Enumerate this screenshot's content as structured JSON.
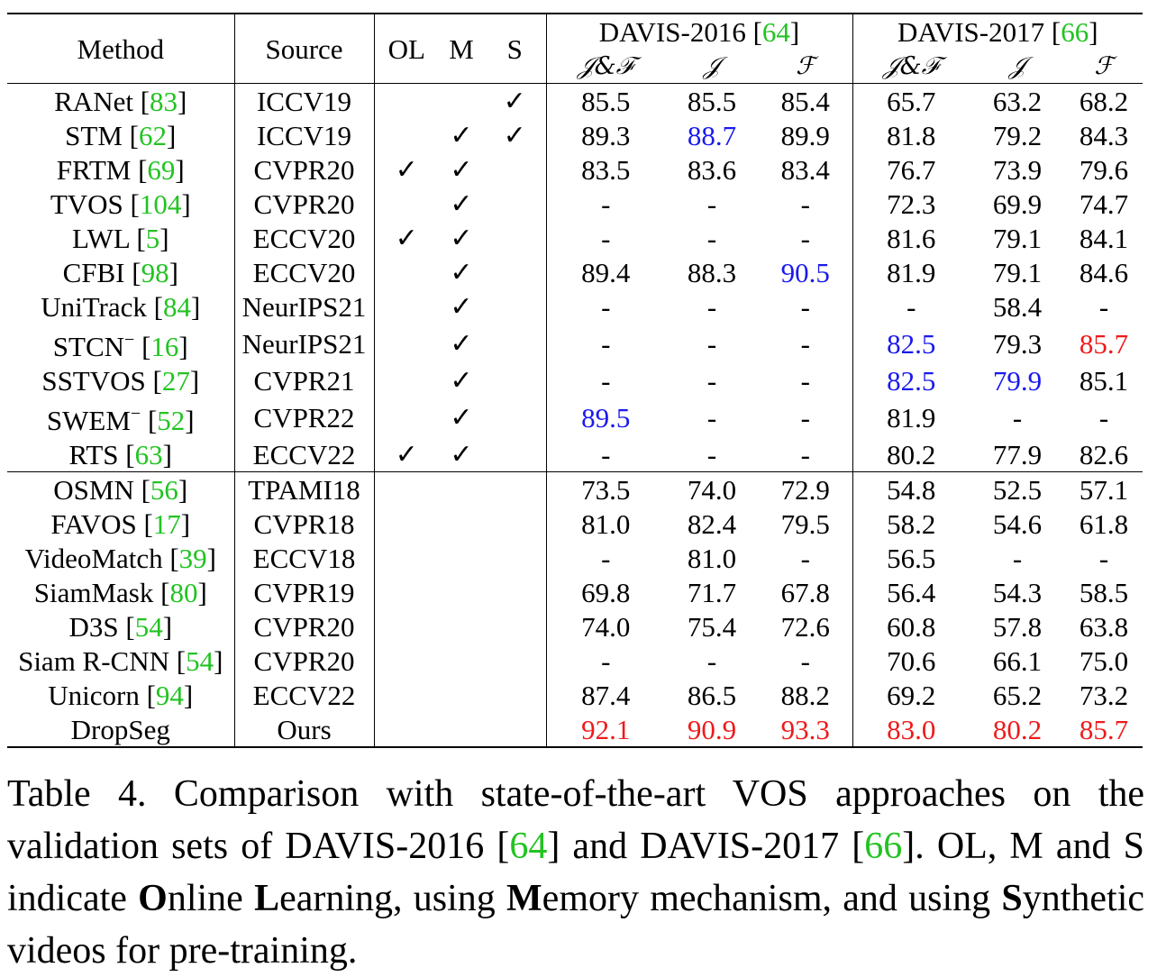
{
  "table": {
    "headers": {
      "method": "Method",
      "source": "Source",
      "ol": "OL",
      "m": "M",
      "s": "S",
      "davis2016_prefix": "DAVIS-2016 [",
      "davis2016_cite": "64",
      "davis2017_prefix": "DAVIS-2017 [",
      "davis2017_cite": "66",
      "close_bracket": "]",
      "jf": "𝒥&ℱ",
      "j": "𝒥",
      "f": "ℱ"
    },
    "rows": [
      {
        "name": "RANet",
        "cite": "83",
        "sup": "",
        "source": "ICCV19",
        "ol": "",
        "m": "",
        "s": "✓",
        "d16": [
          "85.5",
          "85.5",
          "85.4"
        ],
        "d17": [
          "65.7",
          "63.2",
          "68.2"
        ],
        "hl16": [
          "",
          "",
          ""
        ],
        "hl17": [
          "",
          "",
          ""
        ]
      },
      {
        "name": "STM",
        "cite": "62",
        "sup": "",
        "source": "ICCV19",
        "ol": "",
        "m": "✓",
        "s": "✓",
        "d16": [
          "89.3",
          "88.7",
          "89.9"
        ],
        "d17": [
          "81.8",
          "79.2",
          "84.3"
        ],
        "hl16": [
          "",
          "blue",
          ""
        ],
        "hl17": [
          "",
          "",
          ""
        ]
      },
      {
        "name": "FRTM",
        "cite": "69",
        "sup": "",
        "source": "CVPR20",
        "ol": "✓",
        "m": "✓",
        "s": "",
        "d16": [
          "83.5",
          "83.6",
          "83.4"
        ],
        "d17": [
          "76.7",
          "73.9",
          "79.6"
        ],
        "hl16": [
          "",
          "",
          ""
        ],
        "hl17": [
          "",
          "",
          ""
        ]
      },
      {
        "name": "TVOS",
        "cite": "104",
        "sup": "",
        "source": "CVPR20",
        "ol": "",
        "m": "✓",
        "s": "",
        "d16": [
          "-",
          "-",
          "-"
        ],
        "d17": [
          "72.3",
          "69.9",
          "74.7"
        ],
        "hl16": [
          "",
          "",
          ""
        ],
        "hl17": [
          "",
          "",
          ""
        ]
      },
      {
        "name": "LWL",
        "cite": "5",
        "sup": "",
        "source": "ECCV20",
        "ol": "✓",
        "m": "✓",
        "s": "",
        "d16": [
          "-",
          "-",
          "-"
        ],
        "d17": [
          "81.6",
          "79.1",
          "84.1"
        ],
        "hl16": [
          "",
          "",
          ""
        ],
        "hl17": [
          "",
          "",
          ""
        ]
      },
      {
        "name": "CFBI",
        "cite": "98",
        "sup": "",
        "source": "ECCV20",
        "ol": "",
        "m": "✓",
        "s": "",
        "d16": [
          "89.4",
          "88.3",
          "90.5"
        ],
        "d17": [
          "81.9",
          "79.1",
          "84.6"
        ],
        "hl16": [
          "",
          "",
          "blue"
        ],
        "hl17": [
          "",
          "",
          ""
        ]
      },
      {
        "name": "UniTrack",
        "cite": "84",
        "sup": "",
        "source": "NeurIPS21",
        "ol": "",
        "m": "✓",
        "s": "",
        "d16": [
          "-",
          "-",
          "-"
        ],
        "d17": [
          "-",
          "58.4",
          "-"
        ],
        "hl16": [
          "",
          "",
          ""
        ],
        "hl17": [
          "",
          "",
          ""
        ]
      },
      {
        "name": "STCN",
        "cite": "16",
        "sup": "−",
        "source": "NeurIPS21",
        "ol": "",
        "m": "✓",
        "s": "",
        "d16": [
          "-",
          "-",
          "-"
        ],
        "d17": [
          "82.5",
          "79.3",
          "85.7"
        ],
        "hl16": [
          "",
          "",
          ""
        ],
        "hl17": [
          "blue",
          "",
          "red"
        ]
      },
      {
        "name": "SSTVOS",
        "cite": "27",
        "sup": "",
        "source": "CVPR21",
        "ol": "",
        "m": "✓",
        "s": "",
        "d16": [
          "-",
          "-",
          "-"
        ],
        "d17": [
          "82.5",
          "79.9",
          "85.1"
        ],
        "hl16": [
          "",
          "",
          ""
        ],
        "hl17": [
          "blue",
          "blue",
          ""
        ]
      },
      {
        "name": "SWEM",
        "cite": "52",
        "sup": "−",
        "source": "CVPR22",
        "ol": "",
        "m": "✓",
        "s": "",
        "d16": [
          "89.5",
          "-",
          "-"
        ],
        "d17": [
          "81.9",
          "-",
          "-"
        ],
        "hl16": [
          "blue",
          "",
          ""
        ],
        "hl17": [
          "",
          "",
          ""
        ]
      },
      {
        "name": "RTS",
        "cite": "63",
        "sup": "",
        "source": "ECCV22",
        "ol": "✓",
        "m": "✓",
        "s": "",
        "d16": [
          "-",
          "-",
          "-"
        ],
        "d17": [
          "80.2",
          "77.9",
          "82.6"
        ],
        "hl16": [
          "",
          "",
          ""
        ],
        "hl17": [
          "",
          "",
          ""
        ]
      },
      {
        "name": "OSMN",
        "cite": "56",
        "sup": "",
        "source": "TPAMI18",
        "ol": "",
        "m": "",
        "s": "",
        "d16": [
          "73.5",
          "74.0",
          "72.9"
        ],
        "d17": [
          "54.8",
          "52.5",
          "57.1"
        ],
        "hl16": [
          "",
          "",
          ""
        ],
        "hl17": [
          "",
          "",
          ""
        ]
      },
      {
        "name": "FAVOS",
        "cite": "17",
        "sup": "",
        "source": "CVPR18",
        "ol": "",
        "m": "",
        "s": "",
        "d16": [
          "81.0",
          "82.4",
          "79.5"
        ],
        "d17": [
          "58.2",
          "54.6",
          "61.8"
        ],
        "hl16": [
          "",
          "",
          ""
        ],
        "hl17": [
          "",
          "",
          ""
        ]
      },
      {
        "name": "VideoMatch",
        "cite": "39",
        "sup": "",
        "source": "ECCV18",
        "ol": "",
        "m": "",
        "s": "",
        "d16": [
          "-",
          "81.0",
          "-"
        ],
        "d17": [
          "56.5",
          "-",
          "-"
        ],
        "hl16": [
          "",
          "",
          ""
        ],
        "hl17": [
          "",
          "",
          ""
        ]
      },
      {
        "name": "SiamMask",
        "cite": "80",
        "sup": "",
        "source": "CVPR19",
        "ol": "",
        "m": "",
        "s": "",
        "d16": [
          "69.8",
          "71.7",
          "67.8"
        ],
        "d17": [
          "56.4",
          "54.3",
          "58.5"
        ],
        "hl16": [
          "",
          "",
          ""
        ],
        "hl17": [
          "",
          "",
          ""
        ]
      },
      {
        "name": "D3S",
        "cite": "54",
        "sup": "",
        "source": "CVPR20",
        "ol": "",
        "m": "",
        "s": "",
        "d16": [
          "74.0",
          "75.4",
          "72.6"
        ],
        "d17": [
          "60.8",
          "57.8",
          "63.8"
        ],
        "hl16": [
          "",
          "",
          ""
        ],
        "hl17": [
          "",
          "",
          ""
        ]
      },
      {
        "name": "Siam R-CNN",
        "cite": "54",
        "sup": "",
        "source": "CVPR20",
        "ol": "",
        "m": "",
        "s": "",
        "d16": [
          "-",
          "-",
          "-"
        ],
        "d17": [
          "70.6",
          "66.1",
          "75.0"
        ],
        "hl16": [
          "",
          "",
          ""
        ],
        "hl17": [
          "",
          "",
          ""
        ]
      },
      {
        "name": "Unicorn",
        "cite": "94",
        "sup": "",
        "source": "ECCV22",
        "ol": "",
        "m": "",
        "s": "",
        "d16": [
          "87.4",
          "86.5",
          "88.2"
        ],
        "d17": [
          "69.2",
          "65.2",
          "73.2"
        ],
        "hl16": [
          "",
          "",
          ""
        ],
        "hl17": [
          "",
          "",
          ""
        ]
      },
      {
        "name": "DropSeg",
        "cite": "",
        "sup": "",
        "source": "Ours",
        "ol": "",
        "m": "",
        "s": "",
        "d16": [
          "92.1",
          "90.9",
          "93.3"
        ],
        "d17": [
          "83.0",
          "80.2",
          "85.7"
        ],
        "hl16": [
          "red",
          "red",
          "red"
        ],
        "hl17": [
          "red",
          "red",
          "red"
        ],
        "bold": true
      }
    ]
  },
  "caption": {
    "p1": "Table 4. Comparison with state-of-the-art VOS approaches on the validation sets of DAVIS-2016 [",
    "c1": "64",
    "p2": "] and DAVIS-2017 [",
    "c2": "66",
    "p3": "]. OL, M and S indicate ",
    "b1": "O",
    "t1": "nline ",
    "b2": "L",
    "t2": "earning, using ",
    "b3": "M",
    "t3": "emory mechanism, and using ",
    "b4": "S",
    "t4": "ynthetic videos for pre-training."
  },
  "colors": {
    "cite": "#22c322",
    "best": "#ee1a1a",
    "second": "#1a1aee"
  }
}
